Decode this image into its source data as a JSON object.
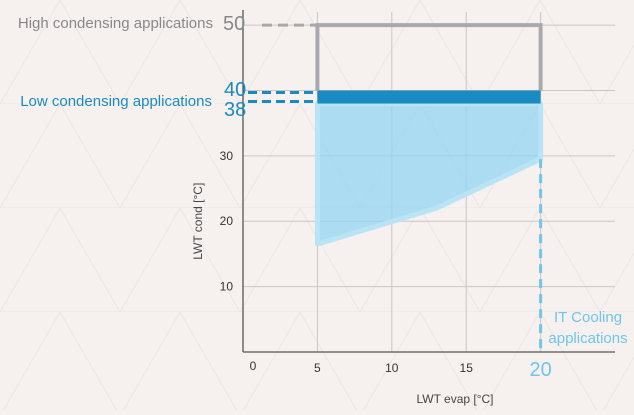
{
  "chart_data": {
    "type": "area",
    "xlabel": "LWT evap [°C]",
    "ylabel": "LWT cond [°C]",
    "xlim": [
      0,
      25
    ],
    "ylim": [
      0,
      52
    ],
    "x_ticks": [
      5,
      10,
      15
    ],
    "y_ticks": [
      10,
      20,
      30
    ],
    "origin_label": "0",
    "grid": true,
    "regions": [
      {
        "name": "High condensing applications",
        "label": "High condensing applications",
        "level_value": 50,
        "level_label": "50",
        "color": "#a9a9ad",
        "outline": [
          [
            5,
            40
          ],
          [
            5,
            50
          ],
          [
            20,
            50
          ],
          [
            20,
            40
          ]
        ]
      },
      {
        "name": "Low condensing applications",
        "label": "Low condensing applications",
        "band": [
          38,
          40
        ],
        "level_labels": [
          "40",
          "38"
        ],
        "color": "#1a8bc2",
        "band_x": [
          5,
          20
        ]
      },
      {
        "name": "IT Cooling applications",
        "label_lines": [
          "IT Cooling",
          "applications"
        ],
        "level_value": 20,
        "level_label": "20",
        "color": "#8fd4f2",
        "polygon": [
          [
            5,
            16.5
          ],
          [
            13,
            22
          ],
          [
            20,
            29.5
          ],
          [
            20,
            38
          ],
          [
            5,
            38
          ]
        ]
      }
    ],
    "colors": {
      "grid": "#c9c6c6",
      "axis": "#555555",
      "grey_label": "#888888",
      "blue_label": "#1a8bc2",
      "light_blue_label": "#6fc6ea"
    }
  }
}
